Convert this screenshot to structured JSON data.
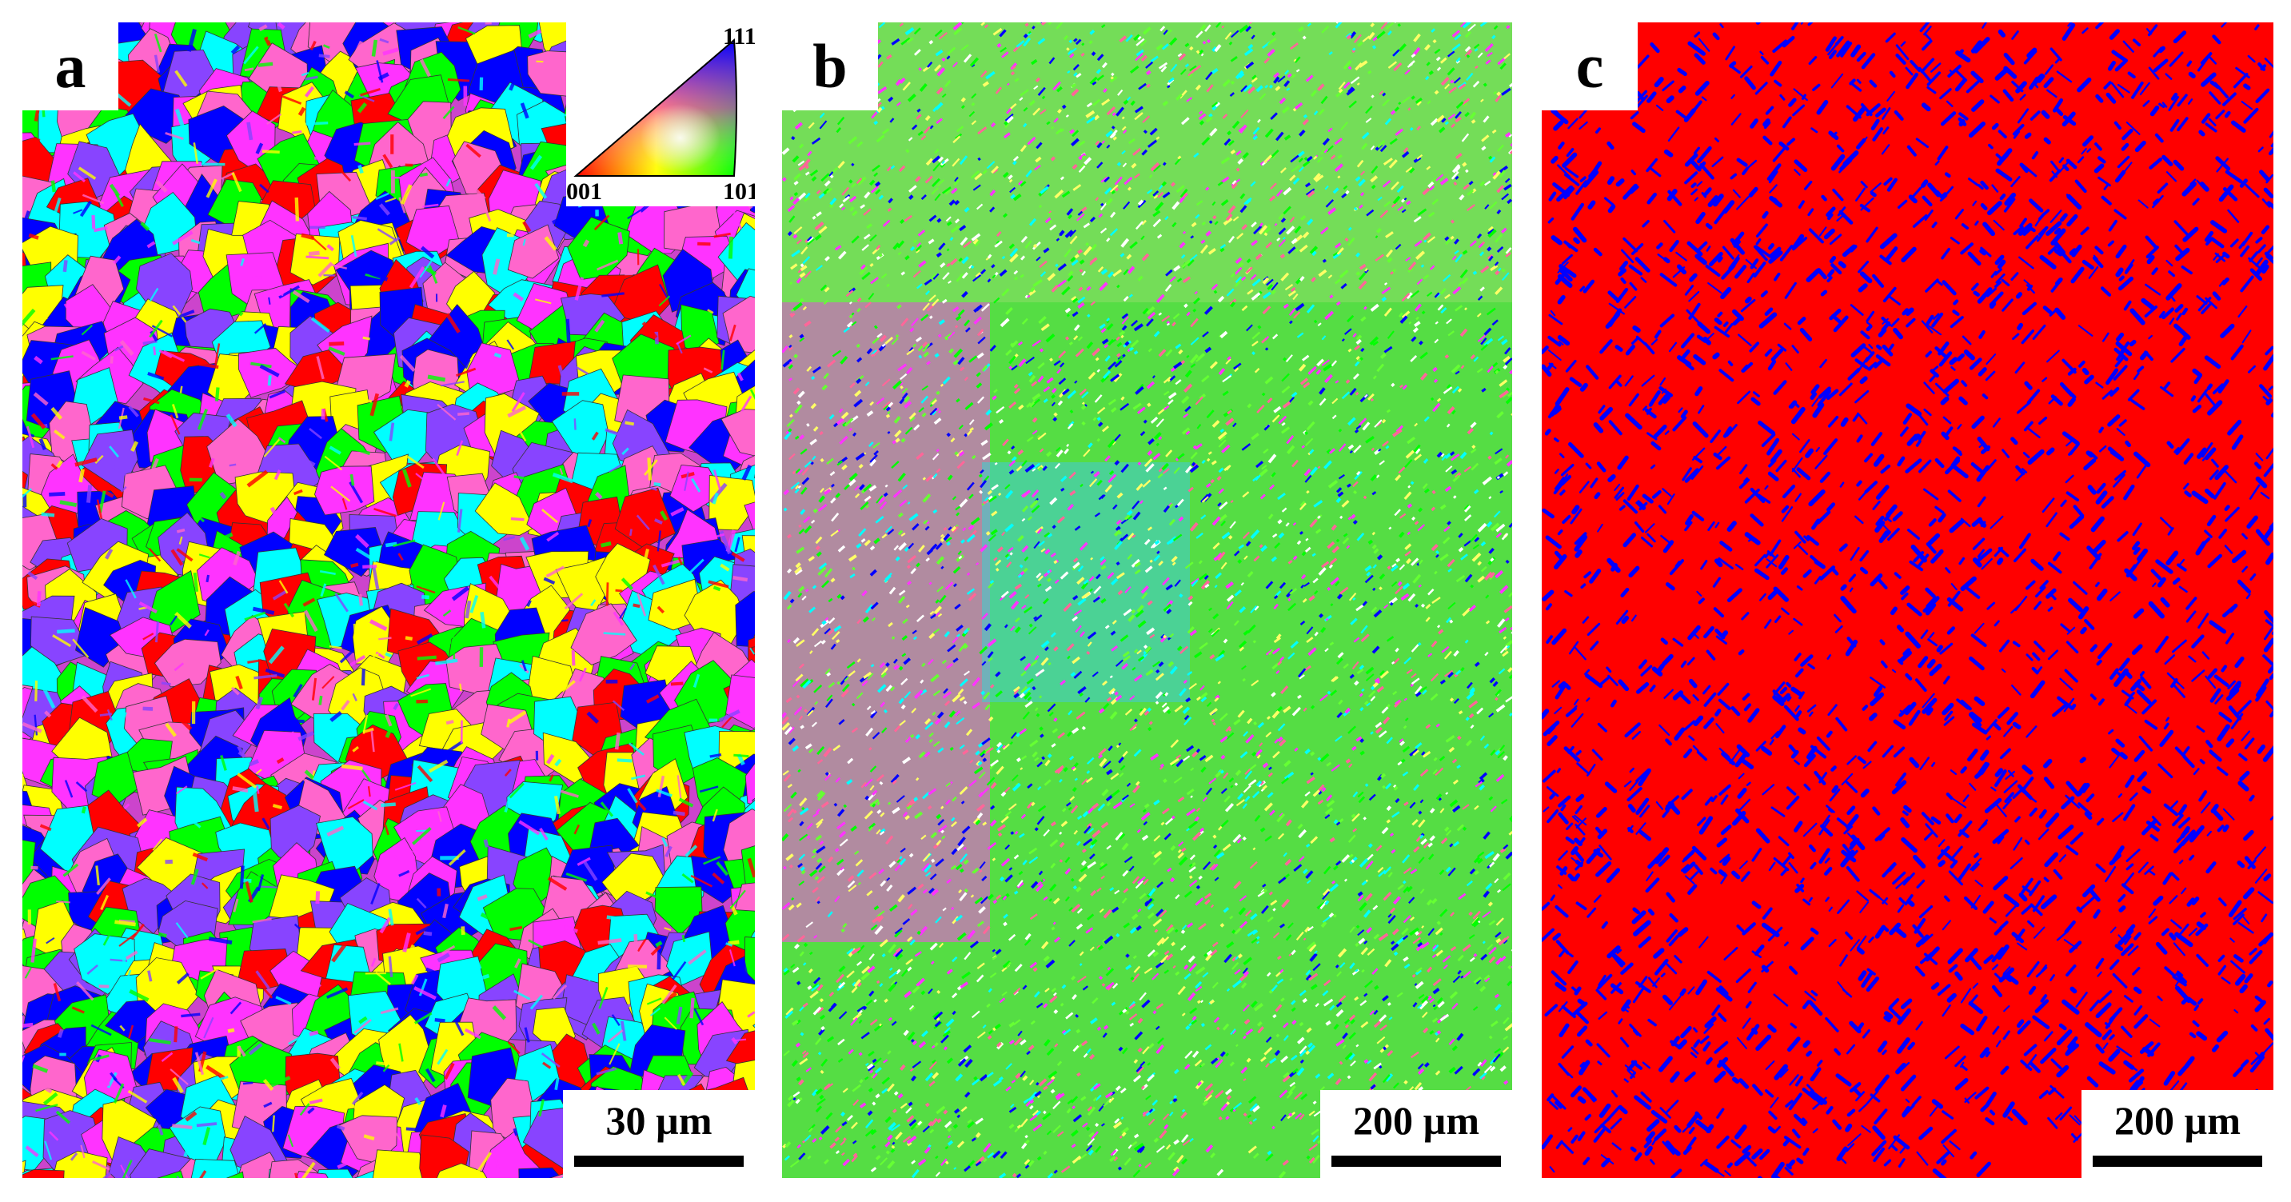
{
  "panels": [
    {
      "label": "a",
      "scalebar": "30 µm",
      "description_colors": [
        "#00ff00",
        "#ff33ff",
        "#0000ff",
        "#ff0000",
        "#00ffff",
        "#ffff00",
        "#ff66cc",
        "#8844ff"
      ]
    },
    {
      "label": "b",
      "scalebar": "200 µm",
      "description_colors": [
        "#00ff00",
        "#66ff33",
        "#ff33ff",
        "#0000ff",
        "#00ffff",
        "#ffff66",
        "#ff6699",
        "#ffffff"
      ]
    },
    {
      "label": "c",
      "scalebar": "200 µm",
      "description_colors": [
        "#ff0000",
        "#0000ff"
      ]
    }
  ],
  "ipf_key": {
    "top": "111",
    "bottom_left": "001",
    "bottom_right": "101"
  }
}
